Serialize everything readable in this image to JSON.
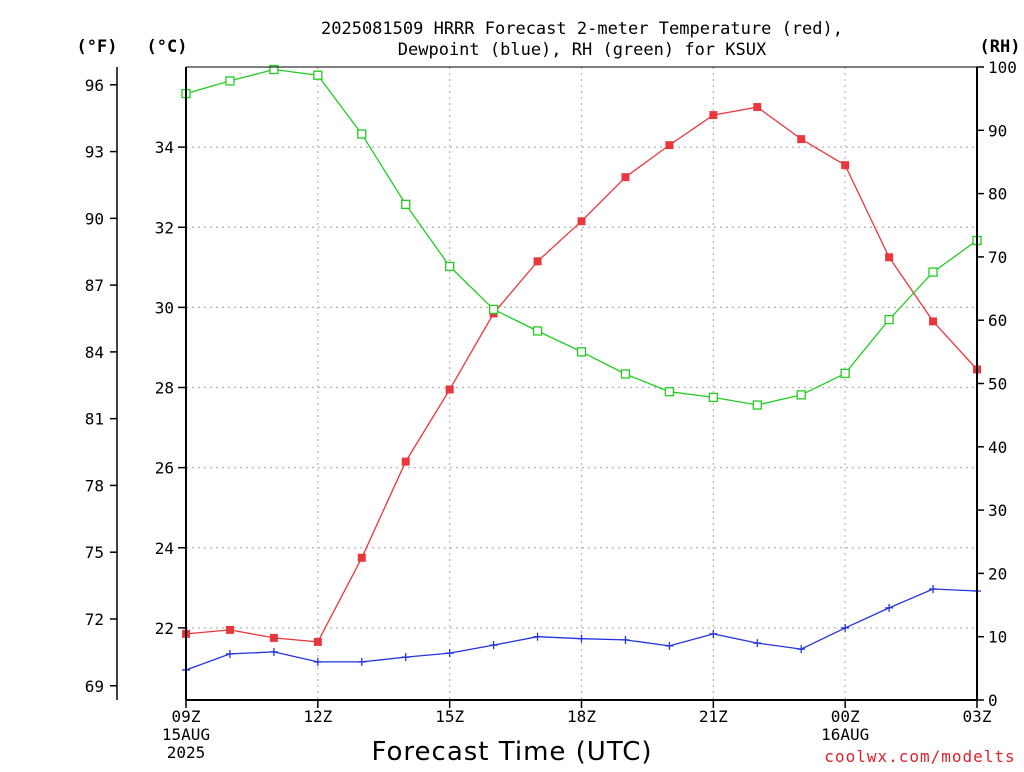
{
  "chart_data": {
    "type": "line",
    "title_line1": "2025081509 HRRR Forecast 2-meter Temperature (red),",
    "title_line2": "Dewpoint (blue), RH (green) for KSUX",
    "unit_f": "(°F)",
    "unit_c": "(°C)",
    "unit_rh": "(RH)",
    "xlabel": "Forecast Time (UTC)",
    "credit": "coolwx.com/modelts",
    "x_range_hours": [
      0,
      18
    ],
    "x_ticks": [
      {
        "hour": 0,
        "lines": [
          "09Z",
          "15AUG",
          "2025"
        ]
      },
      {
        "hour": 3,
        "lines": [
          "12Z"
        ]
      },
      {
        "hour": 6,
        "lines": [
          "15Z"
        ]
      },
      {
        "hour": 9,
        "lines": [
          "18Z"
        ]
      },
      {
        "hour": 12,
        "lines": [
          "21Z"
        ]
      },
      {
        "hour": 15,
        "lines": [
          "00Z",
          "16AUG"
        ]
      },
      {
        "hour": 18,
        "lines": [
          "03Z"
        ]
      }
    ],
    "celsius_axis": {
      "range": [
        20.2,
        36.0
      ],
      "ticks": [
        22,
        24,
        26,
        28,
        30,
        32,
        34
      ]
    },
    "fahrenheit_axis": {
      "ticks": [
        69,
        72,
        75,
        78,
        81,
        84,
        87,
        90,
        93,
        96
      ]
    },
    "rh_axis": {
      "range": [
        0,
        100
      ],
      "ticks": [
        0,
        10,
        20,
        30,
        40,
        50,
        60,
        70,
        80,
        90,
        100
      ]
    },
    "grid": true,
    "colors": {
      "temperature": "#e8383d",
      "dewpoint": "#2233dd",
      "rh": "#22cc22",
      "credit": "#e0202a"
    },
    "series": [
      {
        "key": "temperature",
        "axis": "celsius",
        "marker": "filled-square",
        "values": [
          21.85,
          21.95,
          21.75,
          21.65,
          23.75,
          26.15,
          27.95,
          29.85,
          31.15,
          32.15,
          33.25,
          34.05,
          34.8,
          35.0,
          34.2,
          33.55,
          31.25,
          29.65,
          28.45
        ]
      },
      {
        "key": "dewpoint",
        "axis": "celsius",
        "marker": "plus",
        "values": [
          20.95,
          21.35,
          21.4,
          21.15,
          21.15,
          21.27,
          21.37,
          21.57,
          21.78,
          21.73,
          21.7,
          21.55,
          21.85,
          21.62,
          21.47,
          22.0,
          22.5,
          22.97,
          22.92
        ]
      },
      {
        "key": "rh",
        "axis": "rh",
        "marker": "open-square",
        "values": [
          95.8,
          97.8,
          99.6,
          98.7,
          89.4,
          78.3,
          68.5,
          61.7,
          58.3,
          55.0,
          51.5,
          48.7,
          47.8,
          46.6,
          48.2,
          51.6,
          60.1,
          67.6,
          72.6
        ]
      }
    ]
  }
}
